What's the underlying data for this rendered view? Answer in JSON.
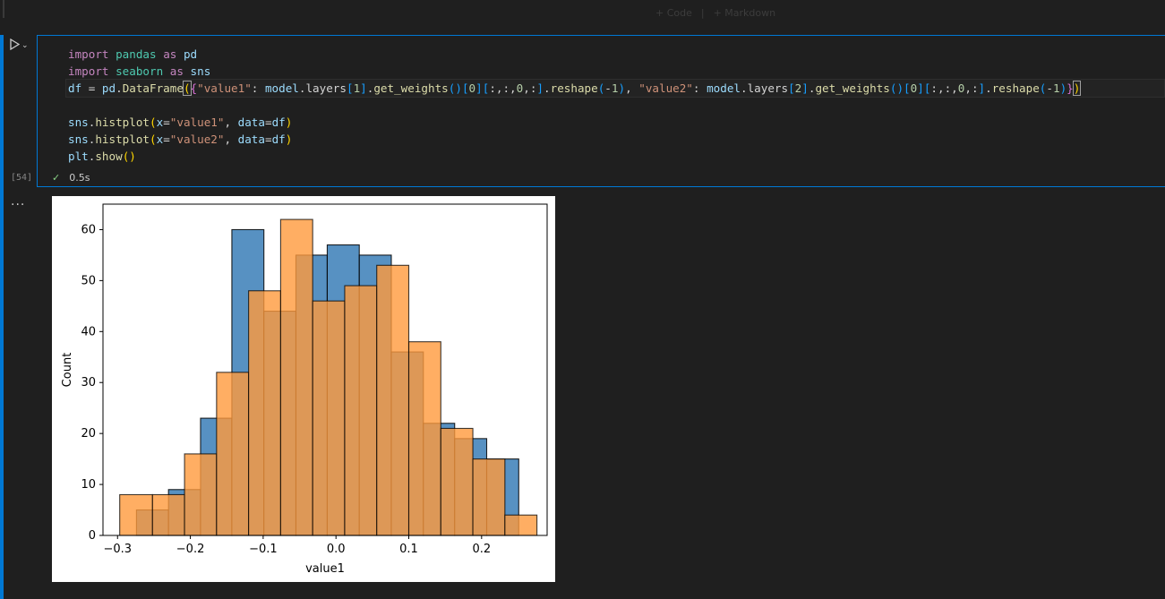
{
  "toolbar": {
    "add_code": "+ Code",
    "add_markdown": "+ Markdown"
  },
  "cell": {
    "execution_count": "[54]",
    "status_time": "0.5s",
    "output_ellipsis": "...",
    "code_lines": [
      "import pandas as pd",
      "import seaborn as sns",
      "df = pd.DataFrame({\"value1\": model.layers[1].get_weights()[0][:,:,0,:].reshape(-1), \"value2\": model.layers[2].get_weights()[0][:,:,0,:].reshape(-1)})",
      "",
      "sns.histplot(x=\"value1\", data=df)",
      "sns.histplot(x=\"value2\", data=df)",
      "plt.show()"
    ]
  },
  "colors": {
    "accent": "#0078d4",
    "series1": "#3b7fb8",
    "series2": "#ff9a3c"
  },
  "chart_data": {
    "type": "bar",
    "title": "",
    "xlabel": "value1",
    "ylabel": "Count",
    "xlim": [
      -0.32,
      0.29
    ],
    "ylim": [
      0,
      65
    ],
    "xticks": [
      -0.3,
      -0.2,
      -0.1,
      0.0,
      0.1,
      0.2
    ],
    "xtick_labels": [
      "−0.3",
      "−0.2",
      "−0.1",
      "0.0",
      "0.1",
      "0.2"
    ],
    "yticks": [
      0,
      10,
      20,
      30,
      40,
      50,
      60
    ],
    "ytick_labels": [
      "0",
      "10",
      "20",
      "30",
      "40",
      "50",
      "60"
    ],
    "series": [
      {
        "bin_edges": [
          -0.274,
          -0.23,
          -0.186,
          -0.143,
          -0.099,
          -0.055,
          -0.012,
          0.032,
          0.076,
          0.12,
          0.163,
          0.207,
          0.251
        ],
        "counts": [
          5,
          9,
          23,
          60,
          44,
          55,
          57,
          55,
          36,
          22,
          19,
          15
        ],
        "color": "#3b7fb8"
      },
      {
        "bin_edges": [
          -0.297,
          -0.252,
          -0.208,
          -0.164,
          -0.12,
          -0.076,
          -0.032,
          0.012,
          0.056,
          0.1,
          0.144,
          0.188,
          0.232,
          0.276
        ],
        "counts": [
          8,
          8,
          16,
          32,
          48,
          62,
          46,
          49,
          53,
          38,
          21,
          15,
          4
        ],
        "color": "#ff9a3c"
      }
    ]
  }
}
